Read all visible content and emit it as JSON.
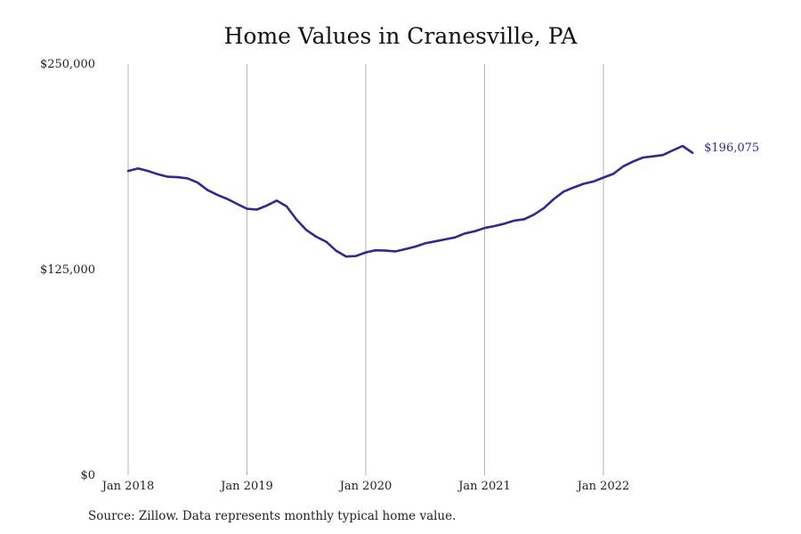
{
  "chart_data": {
    "type": "line",
    "title": "Home Values in Cranesville, PA",
    "xlabel": "",
    "ylabel": "",
    "ylim": [
      0,
      250000
    ],
    "y_ticks": [
      {
        "value": 0,
        "label": "$0"
      },
      {
        "value": 125000,
        "label": "$125,000"
      },
      {
        "value": 250000,
        "label": "$250,000"
      }
    ],
    "x_ticks": [
      {
        "value": "2018-01",
        "label": "Jan 2018"
      },
      {
        "value": "2019-01",
        "label": "Jan 2019"
      },
      {
        "value": "2020-01",
        "label": "Jan 2020"
      },
      {
        "value": "2021-01",
        "label": "Jan 2021"
      },
      {
        "value": "2022-01",
        "label": "Jan 2022"
      }
    ],
    "grid": "vertical",
    "line_color": "#2e2a8e",
    "end_label": "$196,075",
    "series": [
      {
        "x": [
          "2018-01",
          "2018-02",
          "2018-03",
          "2018-04",
          "2018-05",
          "2018-06",
          "2018-07",
          "2018-08",
          "2018-09",
          "2018-10",
          "2018-11",
          "2018-12",
          "2019-01",
          "2019-02",
          "2019-03",
          "2019-04",
          "2019-05",
          "2019-06",
          "2019-07",
          "2019-08",
          "2019-09",
          "2019-10",
          "2019-11",
          "2019-12",
          "2020-01",
          "2020-02",
          "2020-03",
          "2020-04",
          "2020-05",
          "2020-06",
          "2020-07",
          "2020-08",
          "2020-09",
          "2020-10",
          "2020-11",
          "2020-12",
          "2021-01",
          "2021-02",
          "2021-03",
          "2021-04",
          "2021-05",
          "2021-06",
          "2021-07",
          "2021-08",
          "2021-09",
          "2021-10",
          "2021-11",
          "2021-12",
          "2022-01",
          "2022-02",
          "2022-03",
          "2022-04",
          "2022-05",
          "2022-06",
          "2022-07",
          "2022-08",
          "2022-09",
          "2022-10"
        ],
        "values": [
          185000,
          186500,
          185000,
          183000,
          181500,
          181200,
          180500,
          178000,
          173500,
          170500,
          168000,
          165000,
          162000,
          161500,
          164000,
          167000,
          163500,
          155500,
          149000,
          145000,
          142000,
          136500,
          133000,
          133300,
          135500,
          136800,
          136600,
          136100,
          137500,
          139000,
          141000,
          142200,
          143400,
          144600,
          147000,
          148300,
          150300,
          151500,
          153000,
          154800,
          155700,
          158500,
          162500,
          168000,
          172500,
          175000,
          177200,
          178600,
          181000,
          183200,
          187800,
          190800,
          193200,
          193900,
          194700,
          197500,
          200200,
          196075
        ]
      }
    ]
  },
  "source_note": "Source: Zillow. Data represents monthly typical home value."
}
